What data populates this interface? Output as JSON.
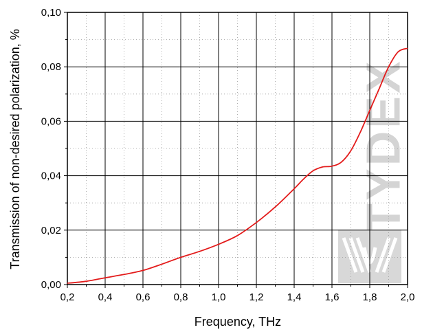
{
  "chart_data": {
    "type": "line",
    "title": "",
    "xlabel": "Frequency, THz",
    "ylabel": "Transmission of non-desired polarization, %",
    "xlim": [
      0.2,
      2.0
    ],
    "ylim": [
      0.0,
      0.1
    ],
    "xticks": [
      0.2,
      0.4,
      0.6,
      0.8,
      1.0,
      1.2,
      1.4,
      1.6,
      1.8,
      2.0
    ],
    "xtick_labels": [
      "0,2",
      "0,4",
      "0,6",
      "0,8",
      "1,0",
      "1,2",
      "1,4",
      "1,6",
      "1,8",
      "2,0"
    ],
    "yticks": [
      0.0,
      0.02,
      0.04,
      0.06,
      0.08,
      0.1
    ],
    "ytick_labels": [
      "0,00",
      "0,02",
      "0,04",
      "0,06",
      "0,08",
      "0,10"
    ],
    "grid": true,
    "minor_grid": "dotted",
    "series": [
      {
        "color": "#e31b1b",
        "x": [
          0.2,
          0.3,
          0.4,
          0.5,
          0.6,
          0.7,
          0.8,
          0.9,
          1.0,
          1.1,
          1.2,
          1.3,
          1.4,
          1.45,
          1.5,
          1.55,
          1.6,
          1.65,
          1.7,
          1.75,
          1.8,
          1.85,
          1.9,
          1.95,
          2.0
        ],
        "y": [
          0.0005,
          0.0012,
          0.0025,
          0.0037,
          0.0052,
          0.0075,
          0.01,
          0.0122,
          0.0148,
          0.018,
          0.0228,
          0.0285,
          0.0352,
          0.0388,
          0.0418,
          0.0432,
          0.0435,
          0.045,
          0.0492,
          0.056,
          0.064,
          0.072,
          0.08,
          0.0855,
          0.0868
        ]
      }
    ]
  },
  "watermark": {
    "text": "TYDEX"
  }
}
